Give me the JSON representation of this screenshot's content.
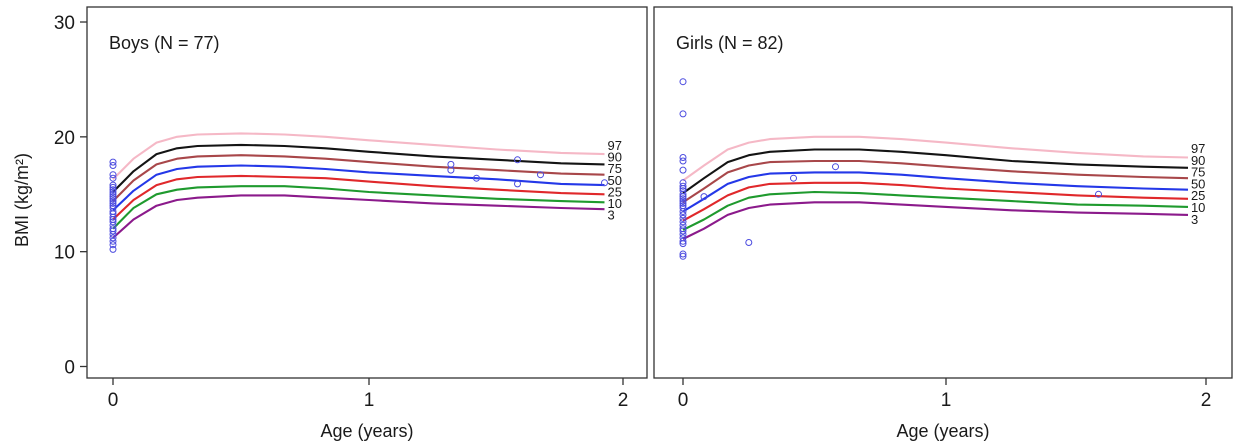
{
  "chart_data": {
    "type": "line",
    "ylabel": "BMI (kg/m²)",
    "ylim": [
      0,
      30
    ],
    "yticks": [
      "0",
      "10",
      "20",
      "30"
    ],
    "xlim": [
      -0.1,
      2.05
    ],
    "xticks": [
      "0",
      "1",
      "2"
    ],
    "colors": {
      "3": "#8b1a8b",
      "10": "#1f9a2e",
      "25": "#e0282b",
      "50": "#2438e8",
      "75": "#a8474a",
      "90": "#141414",
      "97": "#f5b8c6",
      "points": "#4b4bdf",
      "frame": "#333333"
    },
    "panels": [
      {
        "title": "Boys (N = 77)",
        "xlabel": "Age (years)",
        "x": [
          0,
          0.08,
          0.17,
          0.25,
          0.33,
          0.5,
          0.67,
          0.83,
          1.0,
          1.25,
          1.5,
          1.75,
          1.92
        ],
        "series": [
          {
            "name": "3",
            "values": [
              11.2,
              12.8,
              14.0,
              14.5,
              14.7,
              14.9,
              14.9,
              14.7,
              14.5,
              14.2,
              14.0,
              13.8,
              13.7
            ]
          },
          {
            "name": "10",
            "values": [
              12.0,
              13.8,
              15.0,
              15.4,
              15.6,
              15.7,
              15.7,
              15.5,
              15.2,
              14.9,
              14.6,
              14.4,
              14.3
            ]
          },
          {
            "name": "25",
            "values": [
              12.8,
              14.5,
              15.8,
              16.3,
              16.5,
              16.6,
              16.5,
              16.4,
              16.1,
              15.7,
              15.4,
              15.1,
              15.0
            ]
          },
          {
            "name": "50",
            "values": [
              13.6,
              15.3,
              16.7,
              17.2,
              17.4,
              17.5,
              17.4,
              17.2,
              16.9,
              16.6,
              16.3,
              15.9,
              15.8
            ]
          },
          {
            "name": "75",
            "values": [
              14.4,
              16.2,
              17.6,
              18.1,
              18.3,
              18.4,
              18.3,
              18.1,
              17.8,
              17.4,
              17.1,
              16.8,
              16.7
            ]
          },
          {
            "name": "90",
            "values": [
              15.2,
              17.0,
              18.5,
              19.0,
              19.2,
              19.3,
              19.2,
              19.0,
              18.7,
              18.3,
              18.0,
              17.7,
              17.6
            ]
          },
          {
            "name": "97",
            "values": [
              16.3,
              18.1,
              19.5,
              20.0,
              20.2,
              20.3,
              20.2,
              20.0,
              19.7,
              19.3,
              18.9,
              18.6,
              18.5
            ]
          }
        ],
        "labels": [
          "97",
          "90",
          "75",
          "50",
          "25",
          "10",
          "3"
        ],
        "points": [
          [
            0,
            17.8
          ],
          [
            0,
            17.5
          ],
          [
            0,
            16.7
          ],
          [
            0,
            16.4
          ],
          [
            0,
            15.8
          ],
          [
            0,
            15.6
          ],
          [
            0,
            15.4
          ],
          [
            0,
            15.2
          ],
          [
            0,
            15.0
          ],
          [
            0,
            14.8
          ],
          [
            0,
            14.6
          ],
          [
            0,
            14.4
          ],
          [
            0,
            14.2
          ],
          [
            0,
            14.0
          ],
          [
            0,
            13.8
          ],
          [
            0,
            13.5
          ],
          [
            0,
            13.3
          ],
          [
            0,
            13.0
          ],
          [
            0,
            12.8
          ],
          [
            0,
            12.6
          ],
          [
            0,
            12.3
          ],
          [
            0,
            12.0
          ],
          [
            0,
            11.8
          ],
          [
            0,
            11.5
          ],
          [
            0,
            11.2
          ],
          [
            0,
            10.9
          ],
          [
            0,
            10.6
          ],
          [
            0,
            10.2
          ],
          [
            1.32,
            17.6
          ],
          [
            1.32,
            17.1
          ],
          [
            1.42,
            16.4
          ],
          [
            1.58,
            18.0
          ],
          [
            1.58,
            15.9
          ],
          [
            1.67,
            16.7
          ],
          [
            1.92,
            16.0
          ]
        ]
      },
      {
        "title": "Girls (N = 82)",
        "xlabel": "Age (years)",
        "x": [
          0,
          0.08,
          0.17,
          0.25,
          0.33,
          0.5,
          0.67,
          0.83,
          1.0,
          1.25,
          1.5,
          1.75,
          1.92
        ],
        "series": [
          {
            "name": "3",
            "values": [
              11.1,
              12.0,
              13.2,
              13.8,
              14.1,
              14.3,
              14.3,
              14.1,
              13.9,
              13.6,
              13.4,
              13.3,
              13.2
            ]
          },
          {
            "name": "10",
            "values": [
              11.9,
              12.8,
              14.0,
              14.7,
              15.0,
              15.2,
              15.1,
              14.9,
              14.7,
              14.4,
              14.1,
              14.0,
              13.9
            ]
          },
          {
            "name": "25",
            "values": [
              12.7,
              13.7,
              14.9,
              15.6,
              15.9,
              16.0,
              16.0,
              15.8,
              15.5,
              15.2,
              14.9,
              14.7,
              14.6
            ]
          },
          {
            "name": "50",
            "values": [
              13.5,
              14.6,
              15.9,
              16.5,
              16.8,
              16.9,
              16.9,
              16.7,
              16.4,
              16.0,
              15.7,
              15.5,
              15.4
            ]
          },
          {
            "name": "75",
            "values": [
              14.3,
              15.5,
              16.9,
              17.5,
              17.8,
              17.9,
              17.9,
              17.7,
              17.4,
              17.0,
              16.7,
              16.5,
              16.4
            ]
          },
          {
            "name": "90",
            "values": [
              15.1,
              16.4,
              17.8,
              18.4,
              18.7,
              18.9,
              18.9,
              18.7,
              18.4,
              17.9,
              17.6,
              17.4,
              17.3
            ]
          },
          {
            "name": "97",
            "values": [
              16.2,
              17.5,
              18.9,
              19.5,
              19.8,
              20.0,
              20.0,
              19.8,
              19.5,
              19.0,
              18.6,
              18.3,
              18.2
            ]
          }
        ],
        "labels": [
          "97",
          "90",
          "75",
          "50",
          "25",
          "10",
          "3"
        ],
        "points": [
          [
            0,
            24.8
          ],
          [
            0,
            22.0
          ],
          [
            0,
            18.2
          ],
          [
            0,
            17.9
          ],
          [
            0,
            17.1
          ],
          [
            0,
            16.0
          ],
          [
            0,
            15.7
          ],
          [
            0,
            15.5
          ],
          [
            0,
            15.3
          ],
          [
            0,
            15.0
          ],
          [
            0,
            14.8
          ],
          [
            0,
            14.6
          ],
          [
            0,
            14.4
          ],
          [
            0,
            14.2
          ],
          [
            0,
            14.0
          ],
          [
            0,
            13.8
          ],
          [
            0,
            13.5
          ],
          [
            0,
            13.2
          ],
          [
            0,
            12.9
          ],
          [
            0,
            12.6
          ],
          [
            0,
            12.3
          ],
          [
            0,
            12.0
          ],
          [
            0,
            11.8
          ],
          [
            0,
            11.5
          ],
          [
            0,
            11.2
          ],
          [
            0,
            10.9
          ],
          [
            0,
            10.7
          ],
          [
            0,
            9.8
          ],
          [
            0,
            9.6
          ],
          [
            0.08,
            14.8
          ],
          [
            0.25,
            10.8
          ],
          [
            0.42,
            16.4
          ],
          [
            0.58,
            17.4
          ],
          [
            1.58,
            15.0
          ]
        ]
      }
    ]
  }
}
